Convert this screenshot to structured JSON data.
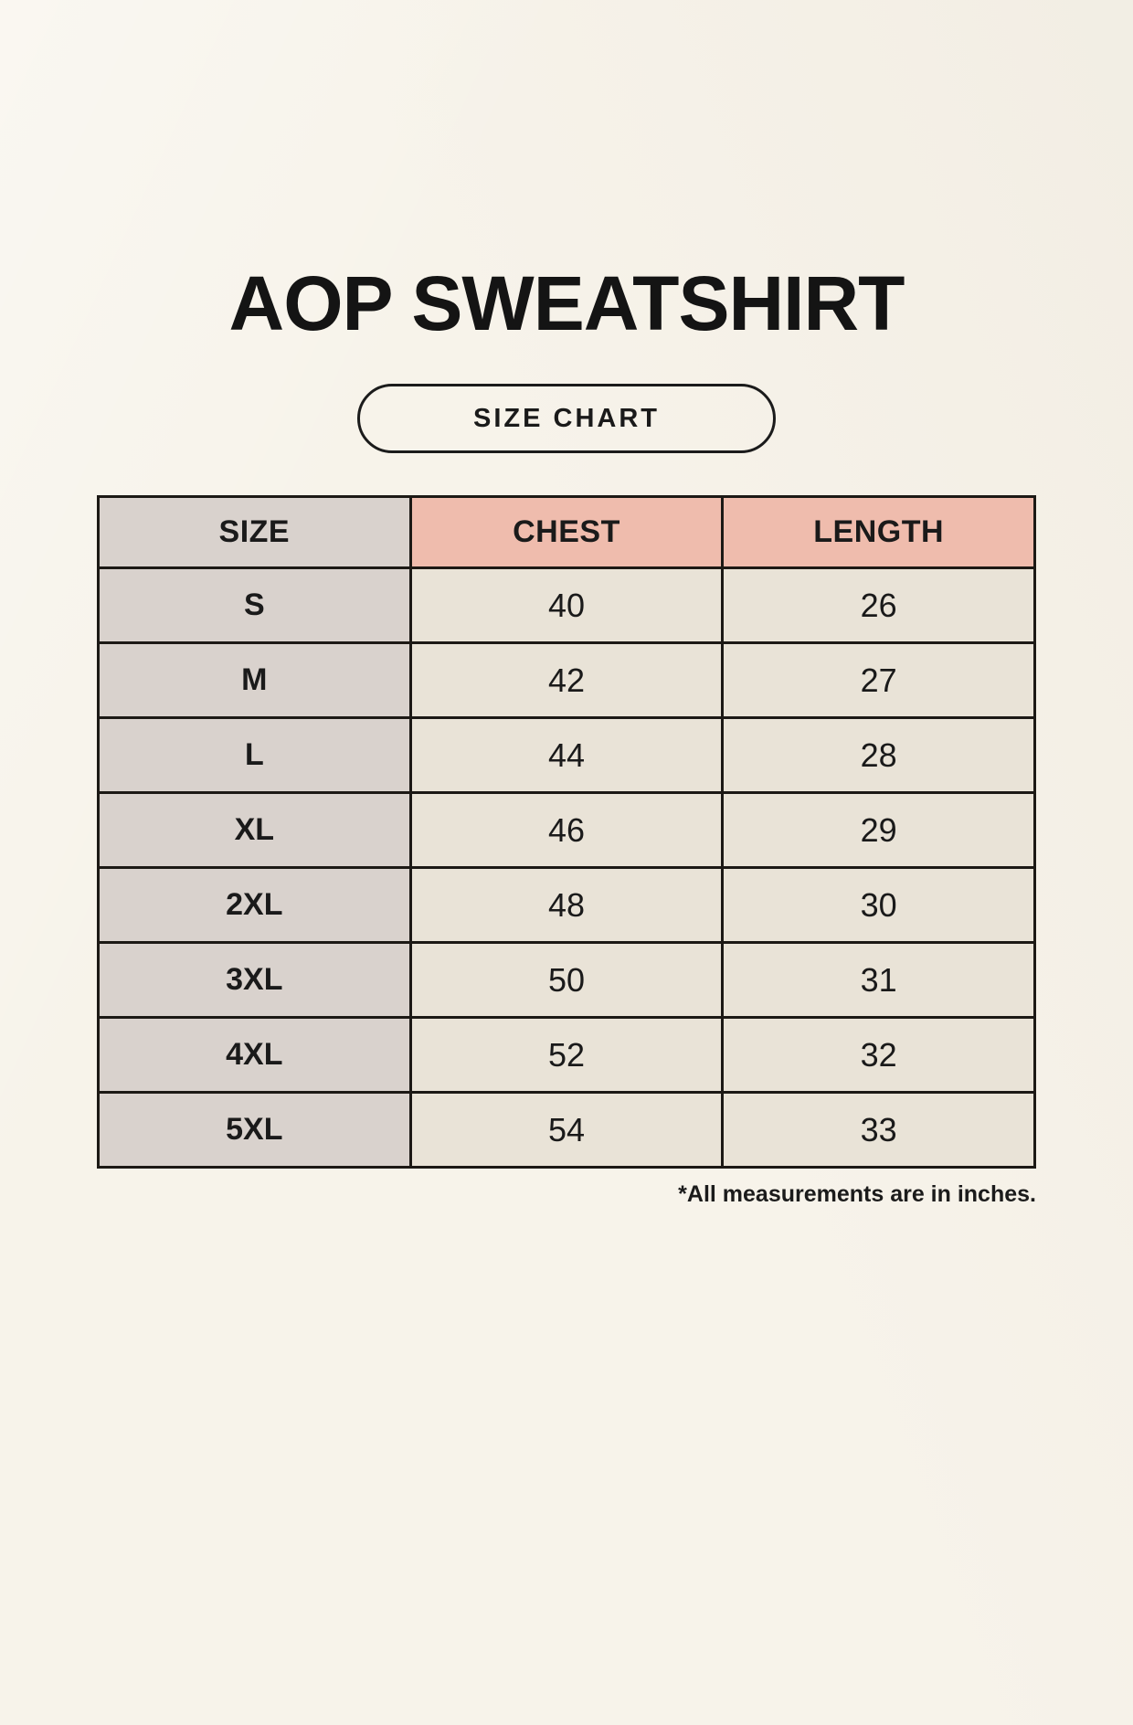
{
  "header": {
    "title": "AOP SWEATSHIRT",
    "badge_label": "SIZE CHART"
  },
  "footnote": {
    "text": "*All measurements are in inches."
  },
  "colors": {
    "background": "#F7F3EA",
    "size_col_bg": "#D9D2CD",
    "measure_header_bg": "#EFBCAD",
    "cell_bg": "#E9E3D7",
    "border": "#1C1915",
    "text": "#1A1A1A"
  },
  "chart_data": {
    "type": "table",
    "title": "AOP SWEATSHIRT",
    "subtitle": "SIZE CHART",
    "columns": [
      "SIZE",
      "CHEST",
      "LENGTH"
    ],
    "rows": [
      [
        "S",
        40,
        26
      ],
      [
        "M",
        42,
        27
      ],
      [
        "L",
        44,
        28
      ],
      [
        "XL",
        46,
        29
      ],
      [
        "2XL",
        48,
        30
      ],
      [
        "3XL",
        50,
        31
      ],
      [
        "4XL",
        52,
        32
      ],
      [
        "5XL",
        54,
        33
      ]
    ],
    "units": "inches",
    "note": "*All measurements are in inches."
  }
}
